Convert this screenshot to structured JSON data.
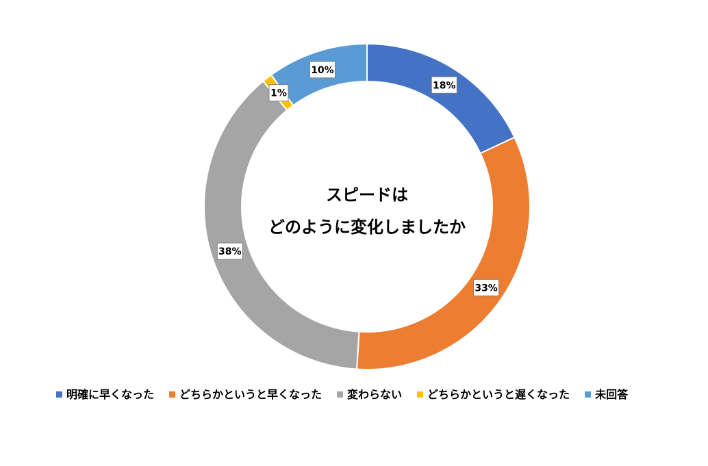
{
  "chart_data": {
    "type": "pie",
    "variant": "donut",
    "title_lines": [
      "スピードは",
      "どのように変化しましたか"
    ],
    "categories": [
      "明確に早くなった",
      "どちらかというと早くなった",
      "変わらない",
      "どちらかというと遅くなった",
      "未回答"
    ],
    "values": [
      18,
      33,
      38,
      1,
      10
    ],
    "value_labels": [
      "18%",
      "33%",
      "38%",
      "1%",
      "10%"
    ],
    "unit": "%",
    "colors": [
      "#4472C4",
      "#ED7D31",
      "#A5A5A5",
      "#FFC000",
      "#5B9BD5"
    ],
    "legend_position": "bottom"
  }
}
